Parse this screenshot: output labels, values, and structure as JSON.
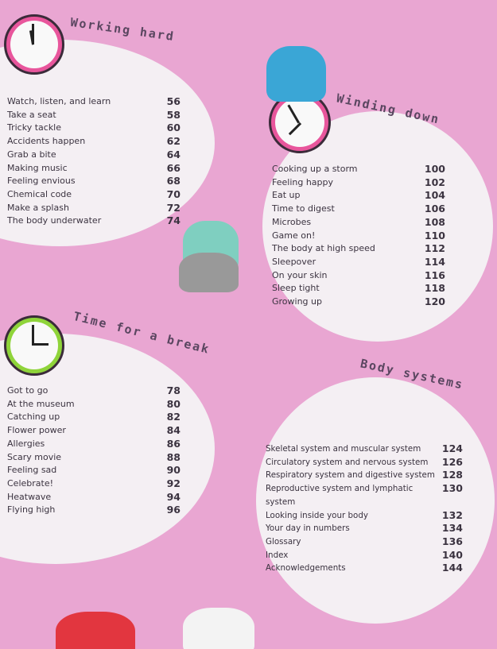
{
  "sections": [
    {
      "title": "Working hard",
      "items": [
        [
          "Watch, listen, and learn",
          "56"
        ],
        [
          "Take a seat",
          "58"
        ],
        [
          "Tricky tackle",
          "60"
        ],
        [
          "Accidents happen",
          "62"
        ],
        [
          "Grab a bite",
          "64"
        ],
        [
          "Making music",
          "66"
        ],
        [
          "Feeling envious",
          "68"
        ],
        [
          "Chemical code",
          "70"
        ],
        [
          "Make a splash",
          "72"
        ],
        [
          "The body underwater",
          "74"
        ]
      ]
    },
    {
      "title": "Winding down",
      "items": [
        [
          "Cooking up a storm",
          "100"
        ],
        [
          "Feeling happy",
          "102"
        ],
        [
          "Eat up",
          "104"
        ],
        [
          "Time to digest",
          "106"
        ],
        [
          "Microbes",
          "108"
        ],
        [
          "Game on!",
          "110"
        ],
        [
          "The body at high speed",
          "112"
        ],
        [
          "Sleepover",
          "114"
        ],
        [
          "On your skin",
          "116"
        ],
        [
          "Sleep tight",
          "118"
        ],
        [
          "Growing up",
          "120"
        ]
      ]
    },
    {
      "title": "Time for a break",
      "items": [
        [
          "Got to go",
          "78"
        ],
        [
          "At the museum",
          "80"
        ],
        [
          "Catching up",
          "82"
        ],
        [
          "Flower power",
          "84"
        ],
        [
          "Allergies",
          "86"
        ],
        [
          "Scary movie",
          "88"
        ],
        [
          "Feeling sad",
          "90"
        ],
        [
          "Celebrate!",
          "92"
        ],
        [
          "Heatwave",
          "94"
        ],
        [
          "Flying high",
          "96"
        ]
      ]
    },
    {
      "title": "Body systems",
      "items": [
        [
          "Skeletal system and muscular system",
          "124"
        ],
        [
          "Circulatory system and nervous system",
          "126"
        ],
        [
          "Respiratory system and digestive system",
          "128"
        ],
        [
          "Reproductive system and lymphatic system",
          "130"
        ],
        [
          "Looking inside your body",
          "132"
        ],
        [
          "Your day in numbers",
          "134"
        ],
        [
          "Glossary",
          "136"
        ],
        [
          "Index",
          "140"
        ],
        [
          "Acknowledgements",
          "144"
        ]
      ]
    }
  ],
  "colors": {
    "background": "#e9a6d2",
    "circle": "#f4eff3",
    "clock_pink": "#e8569c",
    "clock_green": "#8fd43a"
  }
}
